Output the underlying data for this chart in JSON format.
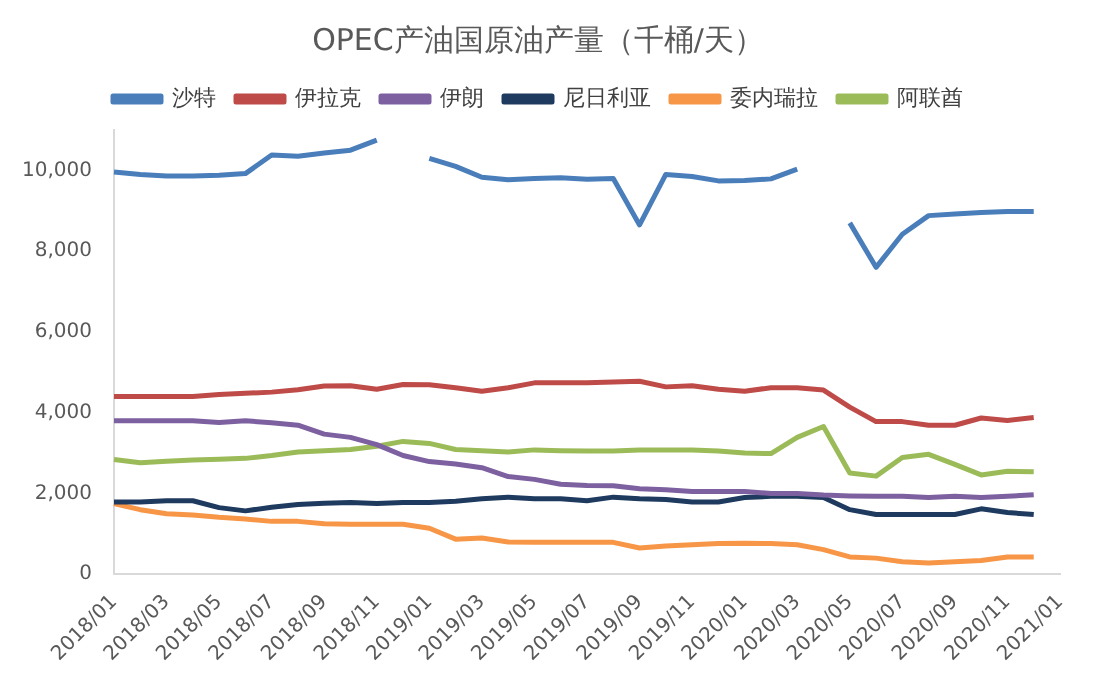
{
  "chart_data": {
    "type": "line",
    "title": "OPEC产油国原油产量（千桶/天）",
    "categories": [
      "2018/01",
      null,
      "2018/03",
      null,
      "2018/05",
      null,
      "2018/07",
      null,
      "2018/09",
      null,
      "2018/11",
      null,
      "2019/01",
      null,
      "2019/03",
      null,
      "2019/05",
      null,
      "2019/07",
      null,
      "2019/09",
      null,
      "2019/11",
      null,
      "2020/01",
      null,
      "2020/03",
      null,
      "2020/05",
      null,
      "2020/07",
      null,
      "2020/09",
      null,
      "2020/11",
      null,
      "2021/01"
    ],
    "series": [
      {
        "name": "沙特",
        "color": "#4a7ebb",
        "values": [
          9960,
          9900,
          9860,
          9860,
          9880,
          9920,
          10380,
          10350,
          10430,
          10500,
          10750,
          null,
          10300,
          10100,
          9830,
          9770,
          9800,
          9820,
          9780,
          9800,
          8650,
          9900,
          9850,
          9740,
          9750,
          9790,
          10030,
          null,
          8700,
          7600,
          8420,
          8880,
          8920,
          8960,
          8980,
          8980,
          null
        ]
      },
      {
        "name": "伊拉克",
        "color": "#be4b48",
        "values": [
          4400,
          4400,
          4400,
          4400,
          4450,
          4480,
          4510,
          4570,
          4660,
          4670,
          4580,
          4700,
          4690,
          4620,
          4530,
          4620,
          4740,
          4740,
          4740,
          4760,
          4780,
          4640,
          4670,
          4580,
          4530,
          4620,
          4620,
          4560,
          4140,
          3780,
          3780,
          3690,
          3690,
          3870,
          3810,
          3880,
          null
        ]
      },
      {
        "name": "伊朗",
        "color": "#7d60a0",
        "values": [
          3800,
          3800,
          3800,
          3800,
          3760,
          3800,
          3750,
          3690,
          3470,
          3390,
          3210,
          2940,
          2790,
          2730,
          2640,
          2420,
          2350,
          2230,
          2200,
          2190,
          2120,
          2090,
          2050,
          2050,
          2050,
          2000,
          2000,
          1960,
          1940,
          1930,
          1930,
          1900,
          1930,
          1900,
          1930,
          1970,
          null
        ]
      },
      {
        "name": "尼日利亚",
        "color": "#1f3a5f",
        "values": [
          1790,
          1790,
          1820,
          1820,
          1650,
          1570,
          1660,
          1730,
          1760,
          1780,
          1750,
          1780,
          1780,
          1810,
          1870,
          1910,
          1870,
          1870,
          1820,
          1910,
          1870,
          1850,
          1790,
          1790,
          1900,
          1930,
          1930,
          1900,
          1600,
          1480,
          1480,
          1480,
          1480,
          1620,
          1530,
          1480,
          null
        ]
      },
      {
        "name": "委内瑞拉",
        "color": "#f79646",
        "values": [
          1750,
          1600,
          1500,
          1470,
          1410,
          1370,
          1310,
          1310,
          1250,
          1240,
          1240,
          1240,
          1140,
          870,
          900,
          800,
          790,
          790,
          790,
          790,
          650,
          700,
          730,
          760,
          770,
          760,
          730,
          610,
          430,
          400,
          310,
          280,
          310,
          340,
          430,
          430,
          null
        ]
      },
      {
        "name": "阿联酋",
        "color": "#9bbb59",
        "values": [
          2840,
          2760,
          2800,
          2830,
          2850,
          2870,
          2940,
          3030,
          3060,
          3090,
          3170,
          3290,
          3240,
          3090,
          3060,
          3030,
          3080,
          3060,
          3050,
          3050,
          3080,
          3080,
          3080,
          3050,
          3000,
          2990,
          3390,
          3660,
          2510,
          2430,
          2890,
          2970,
          2720,
          2460,
          2550,
          2540,
          null
        ]
      }
    ],
    "ylim": [
      0,
      11000
    ],
    "yticks": [
      0,
      {
        "value": 2000,
        "label": "2,000"
      },
      {
        "value": 4000,
        "label": "4,000"
      },
      {
        "value": 6000,
        "label": "6,000"
      },
      {
        "value": 8000,
        "label": "8,000"
      },
      {
        "value": 10000,
        "label": "10,000"
      }
    ],
    "legend": "top",
    "grid": false,
    "marker": "none",
    "line_style": "solid"
  }
}
